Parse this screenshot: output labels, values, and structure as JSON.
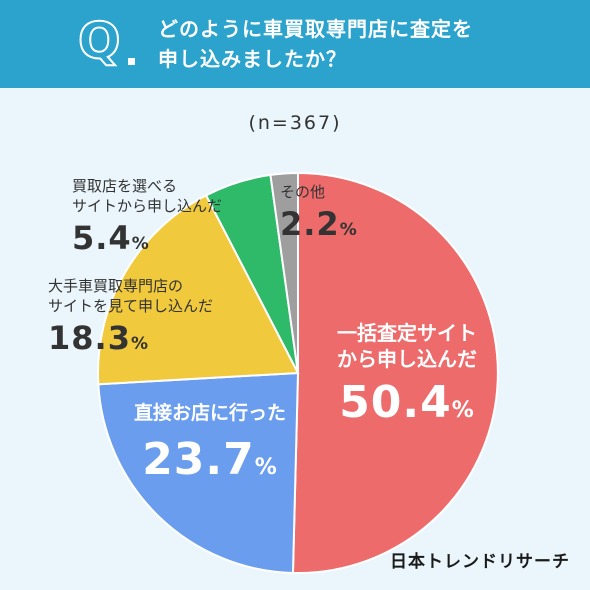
{
  "header": {
    "q": "Q",
    "line1": "どのように車買取専門店に査定を",
    "line2": "申し込みましたか？"
  },
  "sample": "(n=367)",
  "brand": "日本トレンドリサーチ",
  "chart_data": {
    "type": "pie",
    "total_n": 367,
    "slices": [
      {
        "name_lines": [
          "一括査定サイト",
          "から申し込んだ"
        ],
        "value": 50.4,
        "color": "#ee6b6b"
      },
      {
        "name_lines": [
          "直接お店に行った"
        ],
        "value": 23.7,
        "color": "#6a9ded"
      },
      {
        "name_lines": [
          "大手車買取専門店の",
          "サイトを見て申し込んだ"
        ],
        "value": 18.3,
        "color": "#f1c93c"
      },
      {
        "name_lines": [
          "買取店を選べる",
          "サイトから申し込んだ"
        ],
        "value": 5.4,
        "color": "#2fba6a"
      },
      {
        "name_lines": [
          "その他"
        ],
        "value": 2.2,
        "color": "#9e9e9e"
      }
    ],
    "value_suffix": "%"
  }
}
